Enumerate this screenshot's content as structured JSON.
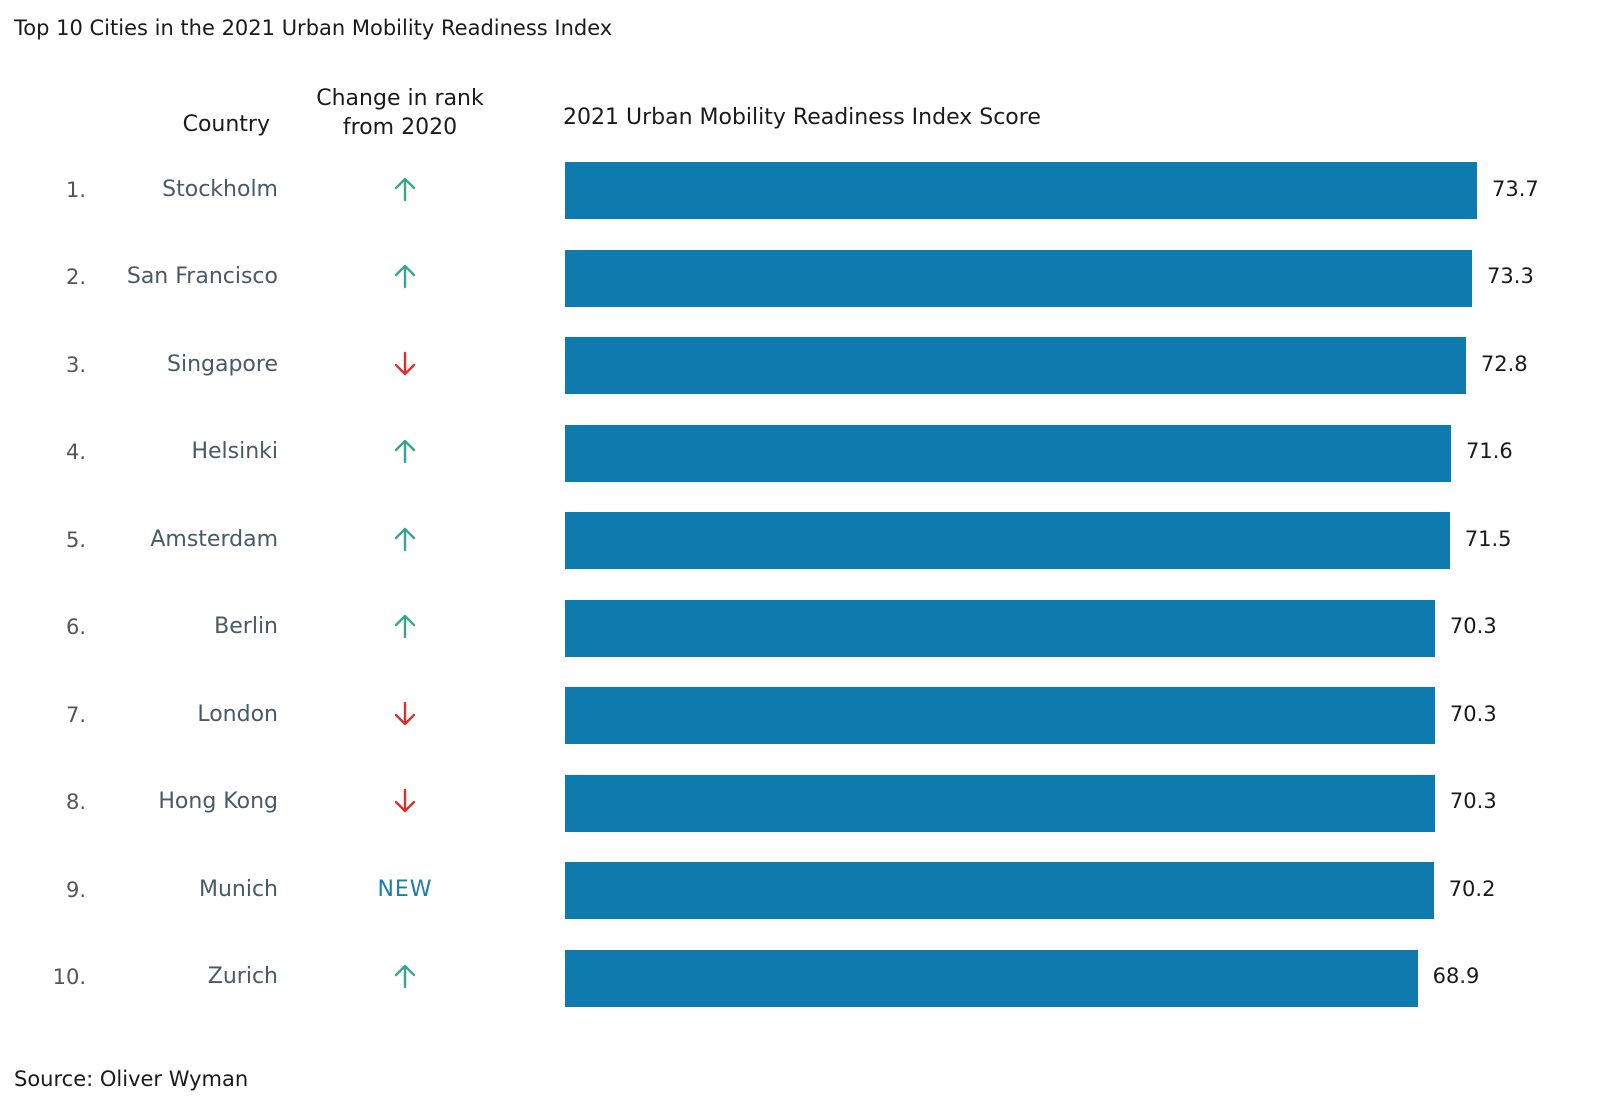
{
  "chart_data": {
    "type": "bar",
    "orientation": "horizontal",
    "title": "Top 10 Cities in the 2021 Urban Mobility Readiness Index",
    "column_headers": {
      "country": "Country",
      "change": "Change in rank from 2020",
      "score": "2021 Urban Mobility Readiness Index Score"
    },
    "rows": [
      {
        "rank": "1.",
        "city": "Stockholm",
        "change": "up",
        "value": 73.7
      },
      {
        "rank": "2.",
        "city": "San Francisco",
        "change": "up",
        "value": 73.3
      },
      {
        "rank": "3.",
        "city": "Singapore",
        "change": "down",
        "value": 72.8
      },
      {
        "rank": "4.",
        "city": "Helsinki",
        "change": "up",
        "value": 71.6
      },
      {
        "rank": "5.",
        "city": "Amsterdam",
        "change": "up",
        "value": 71.5
      },
      {
        "rank": "6.",
        "city": "Berlin",
        "change": "up",
        "value": 70.3
      },
      {
        "rank": "7.",
        "city": "London",
        "change": "down",
        "value": 70.3
      },
      {
        "rank": "8.",
        "city": "Hong Kong",
        "change": "down",
        "value": 70.3
      },
      {
        "rank": "9.",
        "city": "Munich",
        "change": "NEW",
        "value": 70.2
      },
      {
        "rank": "10.",
        "city": "Zurich",
        "change": "up",
        "value": 68.9
      }
    ],
    "up_color": "#3aa58f",
    "down_color": "#d9322c",
    "new_color": "#1a7fab",
    "bar_color": "#0f7aad",
    "source": "Source: Oliver Wyman"
  }
}
